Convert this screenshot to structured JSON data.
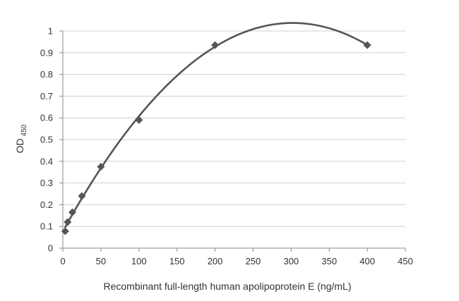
{
  "chart_data": {
    "type": "scatter",
    "title": "",
    "xlabel": "Recombinant full-length human apolipoprotein E (ng/mL)",
    "ylabel": "OD",
    "ylabel_subscript": "450",
    "xlim": [
      0,
      450
    ],
    "ylim": [
      0,
      1
    ],
    "x_ticks": [
      0,
      50,
      100,
      150,
      200,
      250,
      300,
      350,
      400,
      450
    ],
    "y_ticks": [
      "0",
      "0.1",
      "0.2",
      "0.3",
      "0.4",
      "0.5",
      "0.6",
      "0.7",
      "0.8",
      "0.9",
      "1"
    ],
    "grid": "horizontal",
    "legend": "none",
    "marker": "diamond",
    "trendline": "smooth curve",
    "colors": {
      "marker": "#555555",
      "line": "#555555",
      "grid": "#d0d0d0",
      "axis": "#888888"
    },
    "series": [
      {
        "x": [
          3.125,
          6.25,
          12.5,
          25,
          50,
          100,
          200,
          400
        ],
        "y": [
          0.078,
          0.12,
          0.165,
          0.24,
          0.375,
          0.59,
          0.935,
          0.935
        ]
      }
    ]
  }
}
